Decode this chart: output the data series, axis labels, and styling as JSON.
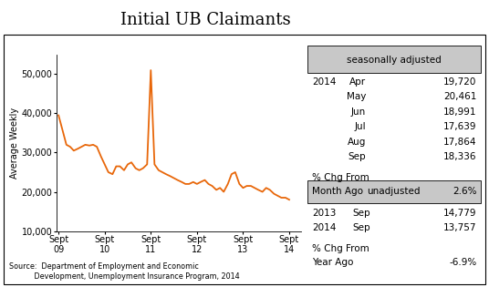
{
  "title": "Initial UB Claimants",
  "ylabel": "Average Weekly",
  "ylim": [
    10000,
    55000
  ],
  "yticks": [
    10000,
    20000,
    30000,
    40000,
    50000
  ],
  "ytick_labels": [
    "10,000",
    "20,000",
    "30,000",
    "40,000",
    "50,000"
  ],
  "xtick_labels": [
    "Sept\n09",
    "Sept\n10",
    "Sept\n11",
    "Sept\n12",
    "Sept\n13",
    "Sept\n14"
  ],
  "line_color": "#E8670A",
  "line_width": 1.3,
  "background_color": "#ffffff",
  "box_color": "#c8c8c8",
  "source_text": "Source:  Department of Employment and Economic\n           Development, Unemployment Insurance Program, 2014",
  "sa_label": "seasonally adjusted",
  "sa_data": [
    [
      "2014",
      "Apr",
      "19,720"
    ],
    [
      "",
      "May",
      "20,461"
    ],
    [
      "",
      "Jun",
      "18,991"
    ],
    [
      "",
      "Jul",
      "17,639"
    ],
    [
      "",
      "Aug",
      "17,864"
    ],
    [
      "",
      "Sep",
      "18,336"
    ]
  ],
  "sa_chg_label1": "% Chg From",
  "sa_chg_label2": "Month Ago",
  "sa_chg_value": "2.6%",
  "unadj_label": "unadjusted",
  "unadj_data": [
    [
      "2013",
      "Sep",
      "14,779"
    ],
    [
      "2014",
      "Sep",
      "13,757"
    ]
  ],
  "unadj_chg_label1": "% Chg From",
  "unadj_chg_label2": "Year Ago",
  "unadj_chg_value": "-6.9%",
  "x_values": [
    0,
    0.08,
    0.17,
    0.25,
    0.33,
    0.42,
    0.5,
    0.58,
    0.67,
    0.75,
    0.83,
    0.92,
    1.0,
    1.08,
    1.17,
    1.25,
    1.33,
    1.42,
    1.5,
    1.58,
    1.67,
    1.75,
    1.83,
    1.92,
    2.0,
    2.08,
    2.17,
    2.25,
    2.33,
    2.42,
    2.5,
    2.58,
    2.67,
    2.75,
    2.83,
    2.92,
    3.0,
    3.08,
    3.17,
    3.25,
    3.33,
    3.42,
    3.5,
    3.58,
    3.67,
    3.75,
    3.83,
    3.92,
    4.0,
    4.08,
    4.17,
    4.25,
    4.33,
    4.42,
    4.5,
    4.58,
    4.67,
    4.75,
    4.83,
    4.92,
    5.0
  ],
  "y_values": [
    39500,
    36000,
    32000,
    31500,
    30500,
    31000,
    31500,
    32000,
    31800,
    32000,
    31500,
    29000,
    27000,
    25000,
    24500,
    26500,
    26500,
    25500,
    27000,
    27500,
    26000,
    25500,
    26000,
    27000,
    51000,
    27000,
    25500,
    25000,
    24500,
    24000,
    23500,
    23000,
    22500,
    22000,
    22000,
    22500,
    22000,
    22500,
    23000,
    22000,
    21500,
    20500,
    21000,
    20000,
    22000,
    24500,
    25000,
    22000,
    21000,
    21500,
    21500,
    21000,
    20500,
    20000,
    21000,
    20500,
    19500,
    19000,
    18500,
    18500,
    18000
  ]
}
